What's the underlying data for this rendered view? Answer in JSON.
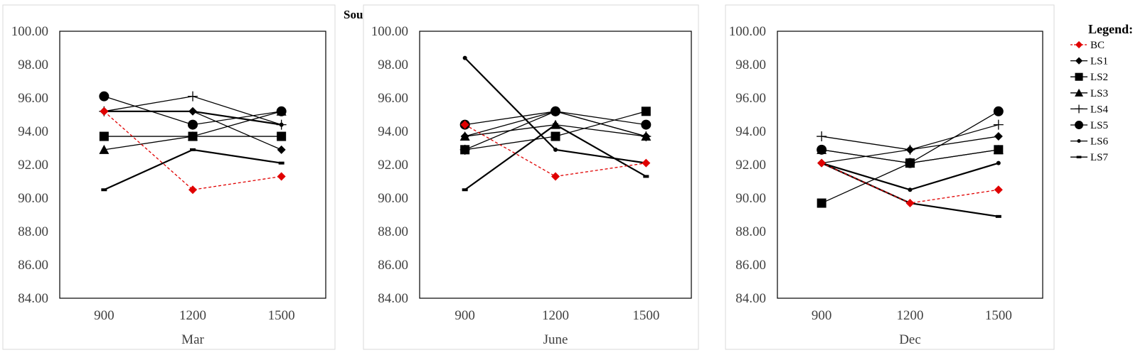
{
  "figure_title": "South",
  "legend": {
    "title": "Legend:",
    "entries": [
      "BC",
      "LS1",
      "LS2",
      "LS3",
      "LS4",
      "LS5",
      "LS6",
      "LS7"
    ]
  },
  "styles": {
    "BC": {
      "color": "#e00000",
      "dash": true,
      "marker": "diamond",
      "marker_color": "#e00000"
    },
    "LS1": {
      "color": "#000000",
      "dash": false,
      "marker": "diamond",
      "marker_color": "#000000"
    },
    "LS2": {
      "color": "#000000",
      "dash": false,
      "marker": "square",
      "marker_color": "#000000"
    },
    "LS3": {
      "color": "#000000",
      "dash": false,
      "marker": "triangle",
      "marker_color": "#000000"
    },
    "LS4": {
      "color": "#000000",
      "dash": false,
      "marker": "plus",
      "marker_color": "#000000"
    },
    "LS5": {
      "color": "#000000",
      "dash": false,
      "marker": "circle",
      "marker_color": "#000000"
    },
    "LS6": {
      "color": "#000000",
      "dash": false,
      "marker": "small-dot",
      "marker_color": "#000000"
    },
    "LS7": {
      "color": "#000000",
      "dash": false,
      "marker": "dash",
      "marker_color": "#000000"
    }
  },
  "chart_data": [
    {
      "type": "line",
      "xlabel": "Mar",
      "categories": [
        "900",
        "1200",
        "1500"
      ],
      "ylim": [
        84,
        100
      ],
      "yticks": [
        "84.00",
        "86.00",
        "88.00",
        "90.00",
        "92.00",
        "94.00",
        "96.00",
        "98.00",
        "100.00"
      ],
      "grid": true,
      "series": [
        {
          "name": "BC",
          "values": [
            95.2,
            90.5,
            91.3
          ]
        },
        {
          "name": "LS1",
          "values": [
            95.2,
            95.2,
            92.9
          ]
        },
        {
          "name": "LS2",
          "values": [
            93.7,
            93.7,
            93.7
          ]
        },
        {
          "name": "LS3",
          "values": [
            92.9,
            93.7,
            95.2
          ]
        },
        {
          "name": "LS4",
          "values": [
            95.2,
            96.1,
            94.4
          ]
        },
        {
          "name": "LS5",
          "values": [
            96.1,
            94.4,
            95.2
          ]
        },
        {
          "name": "LS6",
          "values": [
            95.2,
            95.2,
            94.4
          ]
        },
        {
          "name": "LS7",
          "values": [
            90.5,
            92.9,
            92.1
          ]
        }
      ]
    },
    {
      "type": "line",
      "xlabel": "June",
      "categories": [
        "900",
        "1200",
        "1500"
      ],
      "ylim": [
        84,
        100
      ],
      "yticks": [
        "84.00",
        "86.00",
        "88.00",
        "90.00",
        "92.00",
        "94.00",
        "96.00",
        "98.00",
        "100.00"
      ],
      "grid": true,
      "series": [
        {
          "name": "BC",
          "values": [
            94.4,
            91.3,
            92.1
          ]
        },
        {
          "name": "LS1",
          "values": [
            93.7,
            95.2,
            93.7
          ]
        },
        {
          "name": "LS2",
          "values": [
            92.9,
            93.7,
            95.2
          ]
        },
        {
          "name": "LS3",
          "values": [
            93.7,
            94.4,
            93.7
          ]
        },
        {
          "name": "LS4",
          "values": [
            92.9,
            95.2,
            93.7
          ]
        },
        {
          "name": "LS5",
          "values": [
            94.4,
            95.2,
            94.4
          ]
        },
        {
          "name": "LS6",
          "values": [
            98.4,
            92.9,
            92.1
          ]
        },
        {
          "name": "LS7",
          "values": [
            90.5,
            94.4,
            91.3
          ]
        }
      ]
    },
    {
      "type": "line",
      "xlabel": "Dec",
      "categories": [
        "900",
        "1200",
        "1500"
      ],
      "ylim": [
        84,
        100
      ],
      "yticks": [
        "84.00",
        "86.00",
        "88.00",
        "90.00",
        "92.00",
        "94.00",
        "96.00",
        "98.00",
        "100.00"
      ],
      "grid": true,
      "series": [
        {
          "name": "BC",
          "values": [
            92.1,
            89.7,
            90.5
          ]
        },
        {
          "name": "LS1",
          "values": [
            92.1,
            92.9,
            93.7
          ]
        },
        {
          "name": "LS2",
          "values": [
            89.7,
            92.1,
            92.9
          ]
        },
        {
          "name": "LS3",
          "values": [
            92.9,
            92.1,
            92.9
          ]
        },
        {
          "name": "LS4",
          "values": [
            93.7,
            92.9,
            94.4
          ]
        },
        {
          "name": "LS5",
          "values": [
            92.9,
            92.1,
            95.2
          ]
        },
        {
          "name": "LS6",
          "values": [
            92.1,
            90.5,
            92.1
          ]
        },
        {
          "name": "LS7",
          "values": [
            92.1,
            89.7,
            88.9
          ]
        }
      ]
    }
  ]
}
